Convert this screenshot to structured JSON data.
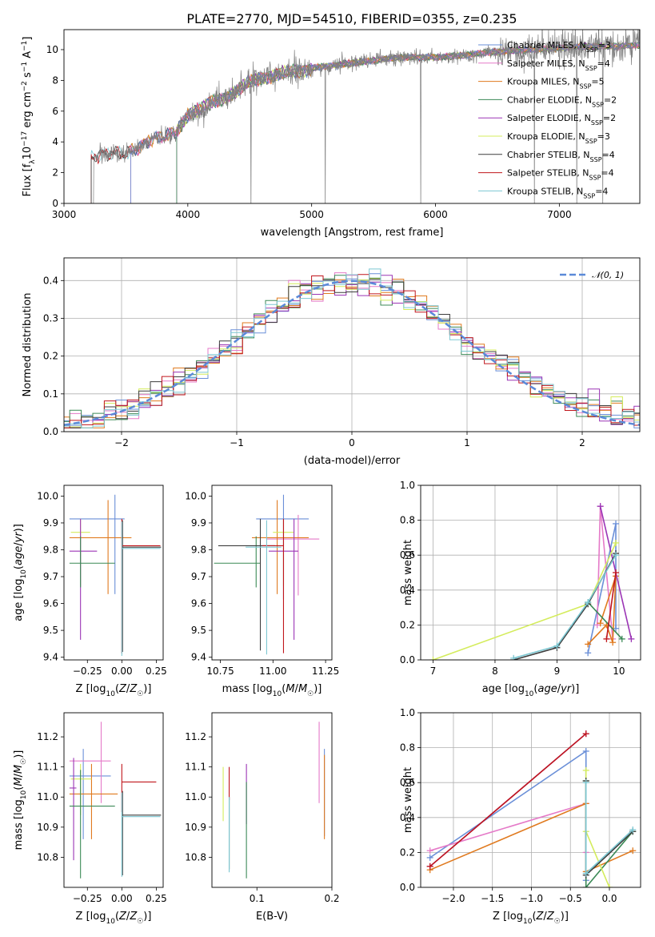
{
  "page": {
    "title": "PLATE=2770, MJD=54510, FIBERID=0355, z=0.235"
  },
  "colors": {
    "Chabrier MILES": "#6a8fd8",
    "Salpeter MILES": "#e57ac8",
    "Kroupa MILES": "#e07a1f",
    "Chabrier ELODIE": "#3c8a57",
    "Salpeter ELODIE": "#9b35b5",
    "Kroupa ELODIE": "#d4ec5c",
    "Chabrier STELIB": "#3d3d3d",
    "Salpeter STELIB": "#c0161c",
    "Kroupa STELIB": "#7cc7d2",
    "data": "#808080",
    "normal": "#5b8ad8"
  },
  "chart_data": [
    {
      "id": "spectrum",
      "type": "line",
      "title": "PLATE=2770, MJD=54510, FIBERID=0355, z=0.235",
      "xlabel": "wavelength [Angstrom, rest frame]",
      "ylabel": "Flux [f_λ 10^-17 erg cm^-2 s^-1 A^-1]",
      "xlim": [
        3000,
        7650
      ],
      "ylim": [
        0,
        11.3
      ],
      "xticks": [
        3000,
        4000,
        5000,
        6000,
        7000
      ],
      "yticks": [
        0,
        2,
        4,
        6,
        8,
        10
      ],
      "legend_position": "top-right",
      "legend": [
        {
          "name": "Chabrier MILES",
          "label": "Chabrier MILES, N_SSP=3"
        },
        {
          "name": "Salpeter MILES",
          "label": "Salpeter MILES, N_SSP=4"
        },
        {
          "name": "Kroupa MILES",
          "label": "Kroupa MILES, N_SSP=5"
        },
        {
          "name": "Chabrier ELODIE",
          "label": "Chabrier ELODIE, N_SSP=2"
        },
        {
          "name": "Salpeter ELODIE",
          "label": "Salpeter ELODIE, N_SSP=2"
        },
        {
          "name": "Kroupa ELODIE",
          "label": "Kroupa ELODIE, N_SSP=3"
        },
        {
          "name": "Chabrier STELIB",
          "label": "Chabrier STELIB, N_SSP=4"
        },
        {
          "name": "Salpeter STELIB",
          "label": "Salpeter STELIB, N_SSP=4"
        },
        {
          "name": "Kroupa STELIB",
          "label": "Kroupa STELIB, N_SSP=4"
        }
      ],
      "continuum": {
        "x": [
          3220,
          3300,
          3400,
          3500,
          3600,
          3700,
          3800,
          3900,
          4000,
          4100,
          4200,
          4300,
          4400,
          4500,
          4600,
          4700,
          4800,
          4900,
          5000,
          5200,
          5400,
          5600,
          5800,
          6000,
          6200,
          6400,
          6600,
          6800,
          7000,
          7200,
          7400,
          7650
        ],
        "y": [
          3.0,
          3.2,
          3.3,
          3.2,
          3.6,
          4.2,
          4.3,
          4.6,
          5.8,
          6.1,
          6.6,
          6.9,
          7.3,
          7.9,
          8.2,
          8.3,
          8.5,
          8.6,
          8.8,
          9.0,
          9.2,
          9.4,
          9.5,
          9.5,
          9.6,
          9.8,
          9.9,
          10.0,
          10.1,
          10.2,
          10.2,
          10.3
        ]
      },
      "model_starts": {
        "MILES": 3540,
        "ELODIE": 3910,
        "STELIB": 3220
      },
      "data_spikes_down_x": [
        4510,
        5110,
        5880,
        6800,
        7140,
        7350
      ]
    },
    {
      "id": "residuals",
      "type": "bar",
      "xlabel": "(data-model)/error",
      "ylabel": "Normed distribution",
      "xlim": [
        -2.5,
        2.5
      ],
      "ylim": [
        0,
        0.46
      ],
      "xticks": [
        -2,
        -1,
        0,
        1,
        2
      ],
      "yticks": [
        0.0,
        0.1,
        0.2,
        0.3,
        0.4
      ],
      "bin_width": 0.1,
      "legend_position": "top-right",
      "normal_label": "𝒩(0, 1)"
    },
    {
      "id": "age-vs-Z",
      "type": "scatter",
      "xlabel": "Z [log10(Z/Z☉)]",
      "ylabel": "age  [log10(age/yr)]",
      "xlim": [
        -0.42,
        0.3
      ],
      "ylim": [
        9.39,
        10.04
      ],
      "xticks": [
        -0.25,
        0.0,
        0.25
      ],
      "yticks": [
        9.4,
        9.5,
        9.6,
        9.7,
        9.8,
        9.9,
        10.0
      ],
      "points": [
        {
          "name": "Chabrier MILES",
          "x": -0.05,
          "y": 9.915,
          "xerr": [
            0.33,
            0.07
          ],
          "yerr": [
            0.28,
            0.09
          ]
        },
        {
          "name": "Kroupa MILES",
          "x": -0.1,
          "y": 9.845,
          "xerr": [
            0.28,
            0.17
          ],
          "yerr": [
            0.21,
            0.14
          ]
        },
        {
          "name": "Kroupa ELODIE",
          "x": -0.3,
          "y": 9.865,
          "xerr": [
            0.07,
            0.07
          ],
          "yerr": [
            0.2,
            0.05
          ]
        },
        {
          "name": "Salpeter ELODIE",
          "x": -0.3,
          "y": 9.795,
          "xerr": [
            0.08,
            0.12
          ],
          "yerr": [
            0.33,
            0.12
          ]
        },
        {
          "name": "Chabrier ELODIE",
          "x": -0.3,
          "y": 9.75,
          "xerr": [
            0.08,
            0.25
          ],
          "yerr": [
            0.09,
            0.1
          ]
        },
        {
          "name": "Chabrier STELIB",
          "x": 0.005,
          "y": 9.81,
          "xerr": [
            0.0,
            0.28
          ],
          "yerr": [
            0.39,
            0.1
          ]
        },
        {
          "name": "Salpeter STELIB",
          "x": 0.0,
          "y": 9.815,
          "xerr": [
            0.0,
            0.28
          ],
          "yerr": [
            0.4,
            0.1
          ]
        },
        {
          "name": "Kroupa STELIB",
          "x": 0.0,
          "y": 9.805,
          "xerr": [
            0.0,
            0.28
          ],
          "yerr": [
            0.4,
            0.1
          ]
        }
      ]
    },
    {
      "id": "age-vs-mass",
      "type": "scatter",
      "xlabel": "mass [log10(M/M☉)]",
      "xlim": [
        10.71,
        11.28
      ],
      "ylim": [
        9.39,
        10.04
      ],
      "xticks": [
        10.75,
        11.0,
        11.25
      ],
      "yticks": [
        9.4,
        9.5,
        9.6,
        9.7,
        9.8,
        9.9,
        10.0
      ],
      "points": [
        {
          "name": "Chabrier MILES",
          "x": 11.05,
          "y": 9.915,
          "xerr": [
            0.13,
            0.12
          ],
          "yerr": [
            0.3,
            0.09
          ]
        },
        {
          "name": "Salpeter MILES",
          "x": 11.12,
          "y": 9.84,
          "xerr": [
            0.15,
            0.1
          ],
          "yerr": [
            0.21,
            0.09
          ]
        },
        {
          "name": "Kroupa MILES",
          "x": 11.02,
          "y": 9.845,
          "xerr": [
            0.12,
            0.15
          ],
          "yerr": [
            0.21,
            0.14
          ]
        },
        {
          "name": "Kroupa ELODIE",
          "x": 11.05,
          "y": 9.865,
          "xerr": [
            0.05,
            0.05
          ],
          "yerr": [
            0.2,
            0.05
          ]
        },
        {
          "name": "Salpeter ELODIE",
          "x": 11.1,
          "y": 9.795,
          "xerr": [
            0.12,
            0.02
          ],
          "yerr": [
            0.33,
            0.12
          ]
        },
        {
          "name": "Chabrier ELODIE",
          "x": 10.92,
          "y": 9.75,
          "xerr": [
            0.2,
            0.02
          ],
          "yerr": [
            0.09,
            0.1
          ]
        },
        {
          "name": "Chabrier STELIB",
          "x": 10.94,
          "y": 9.815,
          "xerr": [
            0.2,
            0.07
          ],
          "yerr": [
            0.39,
            0.1
          ]
        },
        {
          "name": "Salpeter STELIB",
          "x": 11.05,
          "y": 9.815,
          "xerr": [
            0.1,
            0.0
          ],
          "yerr": [
            0.4,
            0.1
          ]
        },
        {
          "name": "Kroupa STELIB",
          "x": 10.97,
          "y": 9.81,
          "xerr": [
            0.1,
            0.07
          ],
          "yerr": [
            0.4,
            0.1
          ]
        }
      ]
    },
    {
      "id": "weight-vs-age",
      "type": "line",
      "xlabel": "age  [log10(age/yr)]",
      "ylabel": "mass weight",
      "xlim": [
        6.8,
        10.35
      ],
      "ylim": [
        0,
        1.0
      ],
      "xticks": [
        7,
        8,
        9,
        10
      ],
      "yticks": [
        0.0,
        0.2,
        0.4,
        0.6,
        0.8,
        1.0
      ],
      "grid": true,
      "series": [
        {
          "name": "Chabrier MILES",
          "x": [
            9.5,
            9.95,
            9.95
          ],
          "y": [
            0.04,
            0.78,
            0.18
          ]
        },
        {
          "name": "Salpeter MILES",
          "x": [
            9.65,
            9.7,
            9.9
          ],
          "y": [
            0.2,
            0.88,
            0.12
          ]
        },
        {
          "name": "Kroupa MILES",
          "x": [
            9.5,
            9.8,
            9.9,
            9.95,
            9.7
          ],
          "y": [
            0.09,
            0.2,
            0.1,
            0.48,
            0.21
          ]
        },
        {
          "name": "Chabrier ELODIE",
          "x": [
            9.5,
            10.05
          ],
          "y": [
            0.33,
            0.12
          ]
        },
        {
          "name": "Salpeter ELODIE",
          "x": [
            9.7,
            10.2
          ],
          "y": [
            0.88,
            0.12
          ]
        },
        {
          "name": "Kroupa ELODIE",
          "x": [
            7.0,
            9.5,
            9.95
          ],
          "y": [
            0.0,
            0.32,
            0.67
          ]
        },
        {
          "name": "Chabrier STELIB",
          "x": [
            8.3,
            9.0,
            9.5,
            9.95
          ],
          "y": [
            0.0,
            0.07,
            0.32,
            0.61
          ]
        },
        {
          "name": "Salpeter STELIB",
          "x": [
            9.8,
            9.95
          ],
          "y": [
            0.12,
            0.5
          ]
        },
        {
          "name": "Kroupa STELIB",
          "x": [
            8.3,
            9.0,
            9.5,
            9.95
          ],
          "y": [
            0.01,
            0.08,
            0.33,
            0.6
          ]
        }
      ]
    },
    {
      "id": "mass-vs-Z",
      "type": "scatter",
      "xlabel": "Z [log10(Z/Z☉)]",
      "ylabel": "mass [log10(M/M☉)]",
      "xlim": [
        -0.42,
        0.3
      ],
      "ylim": [
        10.7,
        11.28
      ],
      "xticks": [
        -0.25,
        0.0,
        0.25
      ],
      "yticks": [
        10.8,
        10.9,
        11.0,
        11.1,
        11.2
      ],
      "points": [
        {
          "name": "Chabrier MILES",
          "x": -0.28,
          "y": 11.07,
          "xerr": [
            0.1,
            0.2
          ],
          "yerr": [
            0.21,
            0.09
          ]
        },
        {
          "name": "Salpeter MILES",
          "x": -0.15,
          "y": 11.12,
          "xerr": [
            0.23,
            0.07
          ],
          "yerr": [
            0.14,
            0.13
          ]
        },
        {
          "name": "Kroupa MILES",
          "x": -0.22,
          "y": 11.01,
          "xerr": [
            0.16,
            0.19
          ],
          "yerr": [
            0.15,
            0.1
          ]
        },
        {
          "name": "Kroupa ELODIE",
          "x": -0.3,
          "y": 11.06,
          "xerr": [
            0.07,
            0.08
          ],
          "yerr": [
            0.12,
            0.05
          ]
        },
        {
          "name": "Salpeter ELODIE",
          "x": -0.35,
          "y": 11.03,
          "xerr": [
            0.03,
            0.02
          ],
          "yerr": [
            0.24,
            0.1
          ]
        },
        {
          "name": "Chabrier ELODIE",
          "x": -0.3,
          "y": 10.97,
          "xerr": [
            0.08,
            0.25
          ],
          "yerr": [
            0.24,
            0.12
          ]
        },
        {
          "name": "Chabrier STELIB",
          "x": 0.005,
          "y": 10.94,
          "xerr": [
            0.0,
            0.28
          ],
          "yerr": [
            0.2,
            0.08
          ]
        },
        {
          "name": "Salpeter STELIB",
          "x": 0.0,
          "y": 11.05,
          "xerr": [
            0.0,
            0.25
          ],
          "yerr": [
            0.1,
            0.06
          ]
        },
        {
          "name": "Kroupa STELIB",
          "x": 0.0,
          "y": 10.935,
          "xerr": [
            0.0,
            0.28
          ],
          "yerr": [
            0.2,
            0.08
          ]
        }
      ]
    },
    {
      "id": "mass-vs-EBV",
      "type": "scatter",
      "xlabel": "E(B-V)",
      "xlim": [
        0.04,
        0.2
      ],
      "ylim": [
        10.7,
        11.28
      ],
      "xticks": [
        0.1,
        0.2
      ],
      "yticks": [
        10.8,
        10.9,
        11.0,
        11.1,
        11.2
      ],
      "points": [
        {
          "name": "Chabrier MILES",
          "x": 0.19,
          "y": 11.07,
          "yerr": [
            0.2,
            0.09
          ]
        },
        {
          "name": "Salpeter MILES",
          "x": 0.183,
          "y": 11.12,
          "yerr": [
            0.14,
            0.13
          ]
        },
        {
          "name": "Kroupa MILES",
          "x": 0.19,
          "y": 11.0,
          "yerr": [
            0.14,
            0.14
          ]
        },
        {
          "name": "Kroupa ELODIE",
          "x": 0.055,
          "y": 11.0,
          "yerr": [
            0.08,
            0.1
          ]
        },
        {
          "name": "Salpeter ELODIE",
          "x": 0.086,
          "y": 11.03,
          "yerr": [
            0.12,
            0.08
          ]
        },
        {
          "name": "Chabrier ELODIE",
          "x": 0.086,
          "y": 10.95,
          "yerr": [
            0.22,
            0.1
          ]
        },
        {
          "name": "Chabrier STELIB",
          "x": 0.063,
          "y": 10.92,
          "yerr": [
            0.16,
            0.08
          ]
        },
        {
          "name": "Salpeter STELIB",
          "x": 0.063,
          "y": 11.04,
          "yerr": [
            0.05,
            0.06
          ]
        },
        {
          "name": "Kroupa STELIB",
          "x": 0.063,
          "y": 10.92,
          "yerr": [
            0.17,
            0.08
          ]
        }
      ]
    },
    {
      "id": "weight-vs-Z",
      "type": "line",
      "xlabel": "Z [log10(Z/Z☉)]",
      "ylabel": "mass weight",
      "xlim": [
        -2.42,
        0.4
      ],
      "ylim": [
        0,
        1.0
      ],
      "xticks": [
        -2.0,
        -1.5,
        -1.0,
        -0.5,
        0.0
      ],
      "yticks": [
        0.0,
        0.2,
        0.4,
        0.6,
        0.8,
        1.0
      ],
      "grid": true,
      "series": [
        {
          "name": "Chabrier MILES",
          "x": [
            -2.3,
            -0.3,
            -0.3
          ],
          "y": [
            0.17,
            0.78,
            0.04
          ]
        },
        {
          "name": "Salpeter MILES",
          "x": [
            -2.3,
            -0.3,
            -0.3
          ],
          "y": [
            0.21,
            0.48,
            0.2
          ]
        },
        {
          "name": "Kroupa MILES",
          "x": [
            -2.3,
            -0.3,
            -0.3,
            0.3
          ],
          "y": [
            0.1,
            0.48,
            0.09,
            0.21
          ]
        },
        {
          "name": "Chabrier ELODIE",
          "x": [
            -0.3,
            -0.3,
            0.3
          ],
          "y": [
            0.61,
            0.0,
            0.32
          ]
        },
        {
          "name": "Salpeter ELODIE",
          "x": [
            -2.3,
            -0.3
          ],
          "y": [
            0.12,
            0.88
          ]
        },
        {
          "name": "Kroupa ELODIE",
          "x": [
            -0.3,
            -0.3,
            0.0
          ],
          "y": [
            0.67,
            0.32,
            0.0
          ]
        },
        {
          "name": "Chabrier STELIB",
          "x": [
            -0.3,
            -0.3,
            0.3
          ],
          "y": [
            0.61,
            0.07,
            0.32
          ]
        },
        {
          "name": "Salpeter STELIB",
          "x": [
            -2.3,
            -0.3
          ],
          "y": [
            0.12,
            0.88
          ]
        },
        {
          "name": "Kroupa STELIB",
          "x": [
            -0.3,
            -0.3,
            0.3
          ],
          "y": [
            0.6,
            0.08,
            0.33
          ]
        }
      ]
    }
  ]
}
